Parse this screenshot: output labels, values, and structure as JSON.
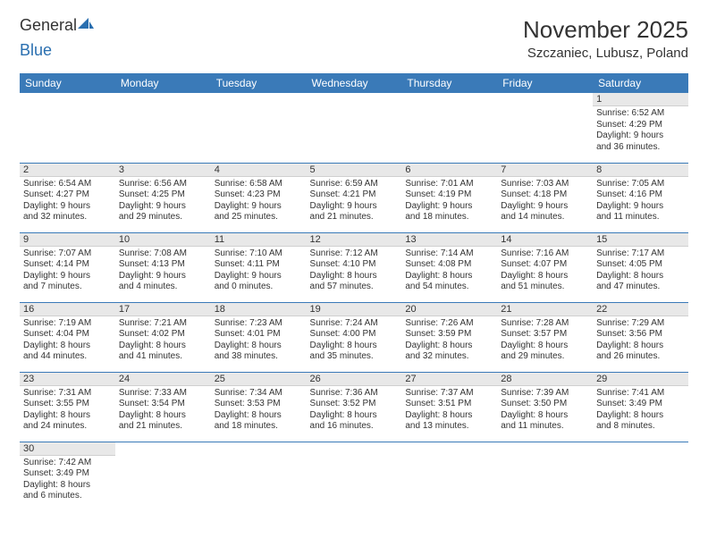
{
  "logo": {
    "part1": "General",
    "part2": "Blue"
  },
  "title": "November 2025",
  "location": "Szczaniec, Lubusz, Poland",
  "theme": {
    "header_bg": "#3a7ab8",
    "header_fg": "#ffffff",
    "daynum_bg": "#e8e8e8",
    "border": "#3a7ab8",
    "title_fontsize": 26,
    "location_fontsize": 15,
    "dayhead_fontsize": 12,
    "daynum_fontsize": 11,
    "body_fontsize": 10
  },
  "weekdays": [
    "Sunday",
    "Monday",
    "Tuesday",
    "Wednesday",
    "Thursday",
    "Friday",
    "Saturday"
  ],
  "weeks": [
    [
      null,
      null,
      null,
      null,
      null,
      null,
      {
        "n": "1",
        "sunrise": "6:52 AM",
        "sunset": "4:29 PM",
        "day_h": "9",
        "day_m": "36"
      }
    ],
    [
      {
        "n": "2",
        "sunrise": "6:54 AM",
        "sunset": "4:27 PM",
        "day_h": "9",
        "day_m": "32"
      },
      {
        "n": "3",
        "sunrise": "6:56 AM",
        "sunset": "4:25 PM",
        "day_h": "9",
        "day_m": "29"
      },
      {
        "n": "4",
        "sunrise": "6:58 AM",
        "sunset": "4:23 PM",
        "day_h": "9",
        "day_m": "25"
      },
      {
        "n": "5",
        "sunrise": "6:59 AM",
        "sunset": "4:21 PM",
        "day_h": "9",
        "day_m": "21"
      },
      {
        "n": "6",
        "sunrise": "7:01 AM",
        "sunset": "4:19 PM",
        "day_h": "9",
        "day_m": "18"
      },
      {
        "n": "7",
        "sunrise": "7:03 AM",
        "sunset": "4:18 PM",
        "day_h": "9",
        "day_m": "14"
      },
      {
        "n": "8",
        "sunrise": "7:05 AM",
        "sunset": "4:16 PM",
        "day_h": "9",
        "day_m": "11"
      }
    ],
    [
      {
        "n": "9",
        "sunrise": "7:07 AM",
        "sunset": "4:14 PM",
        "day_h": "9",
        "day_m": "7"
      },
      {
        "n": "10",
        "sunrise": "7:08 AM",
        "sunset": "4:13 PM",
        "day_h": "9",
        "day_m": "4"
      },
      {
        "n": "11",
        "sunrise": "7:10 AM",
        "sunset": "4:11 PM",
        "day_h": "9",
        "day_m": "0"
      },
      {
        "n": "12",
        "sunrise": "7:12 AM",
        "sunset": "4:10 PM",
        "day_h": "8",
        "day_m": "57"
      },
      {
        "n": "13",
        "sunrise": "7:14 AM",
        "sunset": "4:08 PM",
        "day_h": "8",
        "day_m": "54"
      },
      {
        "n": "14",
        "sunrise": "7:16 AM",
        "sunset": "4:07 PM",
        "day_h": "8",
        "day_m": "51"
      },
      {
        "n": "15",
        "sunrise": "7:17 AM",
        "sunset": "4:05 PM",
        "day_h": "8",
        "day_m": "47"
      }
    ],
    [
      {
        "n": "16",
        "sunrise": "7:19 AM",
        "sunset": "4:04 PM",
        "day_h": "8",
        "day_m": "44"
      },
      {
        "n": "17",
        "sunrise": "7:21 AM",
        "sunset": "4:02 PM",
        "day_h": "8",
        "day_m": "41"
      },
      {
        "n": "18",
        "sunrise": "7:23 AM",
        "sunset": "4:01 PM",
        "day_h": "8",
        "day_m": "38"
      },
      {
        "n": "19",
        "sunrise": "7:24 AM",
        "sunset": "4:00 PM",
        "day_h": "8",
        "day_m": "35"
      },
      {
        "n": "20",
        "sunrise": "7:26 AM",
        "sunset": "3:59 PM",
        "day_h": "8",
        "day_m": "32"
      },
      {
        "n": "21",
        "sunrise": "7:28 AM",
        "sunset": "3:57 PM",
        "day_h": "8",
        "day_m": "29"
      },
      {
        "n": "22",
        "sunrise": "7:29 AM",
        "sunset": "3:56 PM",
        "day_h": "8",
        "day_m": "26"
      }
    ],
    [
      {
        "n": "23",
        "sunrise": "7:31 AM",
        "sunset": "3:55 PM",
        "day_h": "8",
        "day_m": "24"
      },
      {
        "n": "24",
        "sunrise": "7:33 AM",
        "sunset": "3:54 PM",
        "day_h": "8",
        "day_m": "21"
      },
      {
        "n": "25",
        "sunrise": "7:34 AM",
        "sunset": "3:53 PM",
        "day_h": "8",
        "day_m": "18"
      },
      {
        "n": "26",
        "sunrise": "7:36 AM",
        "sunset": "3:52 PM",
        "day_h": "8",
        "day_m": "16"
      },
      {
        "n": "27",
        "sunrise": "7:37 AM",
        "sunset": "3:51 PM",
        "day_h": "8",
        "day_m": "13"
      },
      {
        "n": "28",
        "sunrise": "7:39 AM",
        "sunset": "3:50 PM",
        "day_h": "8",
        "day_m": "11"
      },
      {
        "n": "29",
        "sunrise": "7:41 AM",
        "sunset": "3:49 PM",
        "day_h": "8",
        "day_m": "8"
      }
    ],
    [
      {
        "n": "30",
        "sunrise": "7:42 AM",
        "sunset": "3:49 PM",
        "day_h": "8",
        "day_m": "6"
      },
      null,
      null,
      null,
      null,
      null,
      null
    ]
  ]
}
